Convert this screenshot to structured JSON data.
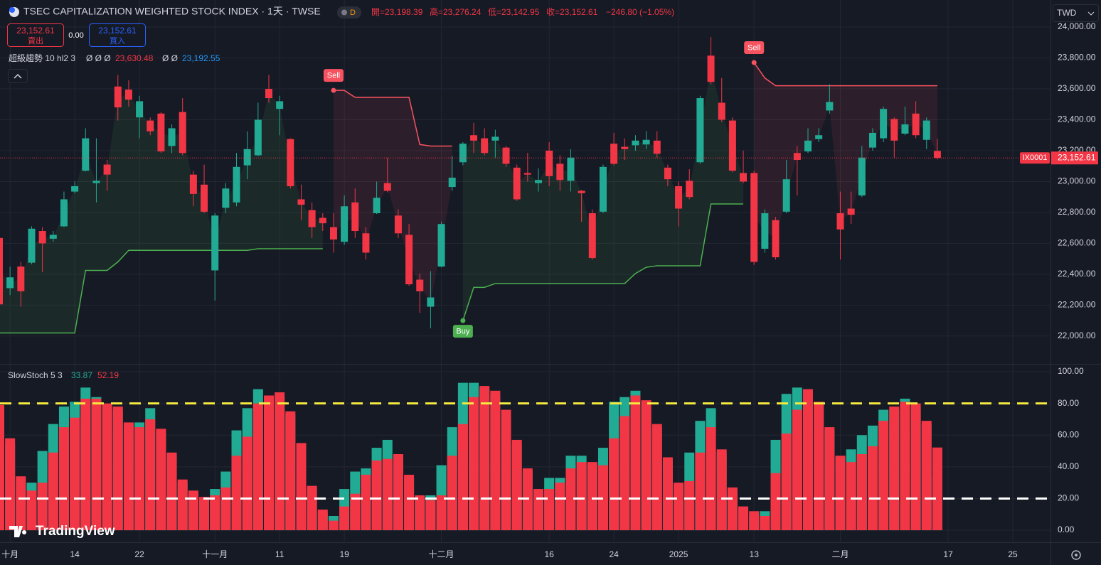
{
  "header": {
    "title": "TSEC CAPITALIZATION WEIGHTED STOCK INDEX · 1天 · TWSE",
    "interval_badge": "D",
    "ohlc": [
      "開=23,198.39",
      "高=23,276.24",
      "低=23,142.95",
      "收=23,152.61"
    ],
    "change": "−246.80 (−1.05%)",
    "currency": "TWD"
  },
  "trade": {
    "sell_price": "23,152.61",
    "sell_label": "賣出",
    "spread": "0.00",
    "buy_price": "23,152.61",
    "buy_label": "買入"
  },
  "indicator": {
    "name": "超級趨勢 10 hl2 3",
    "values": [
      "Ø Ø Ø",
      "23,630.48",
      "Ø Ø",
      "23,192.55"
    ]
  },
  "price_tag": {
    "symbol": "IX0001",
    "price": "23,152.61"
  },
  "logo": "TradingView",
  "chart_data": [
    {
      "type": "candlestick",
      "up_color": "#22ab94",
      "down_color": "#f23645",
      "grid": true,
      "open": [
        22635,
        22310,
        22450,
        22475,
        22680,
        22630,
        22710,
        22935,
        23070,
        22990,
        23110,
        23615,
        23595,
        23415,
        23395,
        23440,
        23230,
        23450,
        23045,
        22980,
        22425,
        22830,
        22865,
        23105,
        23170,
        23600,
        23470,
        23275,
        22885,
        22815,
        22765,
        22705,
        22610,
        22865,
        22665,
        22795,
        22990,
        22780,
        22655,
        22365,
        22190,
        22450,
        22965,
        23125,
        23300,
        23280,
        23265,
        23220,
        23090,
        23055,
        22990,
        23200,
        23115,
        23005,
        22940,
        22795,
        22805,
        23245,
        23225,
        23235,
        23240,
        23265,
        23090,
        22970,
        23005,
        23125,
        23815,
        23510,
        23395,
        23055,
        23055,
        22565,
        22750,
        22805,
        23185,
        23195,
        23275,
        23460,
        22795,
        22825,
        22910,
        23220,
        23280,
        23405,
        23310,
        23440,
        23270,
        23198.39
      ],
      "high": [
        22660,
        22450,
        22480,
        22710,
        22705,
        22680,
        22935,
        23000,
        23345,
        23280,
        23140,
        23690,
        23655,
        23555,
        23415,
        23450,
        23370,
        23540,
        23070,
        23110,
        22795,
        22990,
        23185,
        23325,
        23510,
        23690,
        23555,
        23280,
        22980,
        22865,
        22795,
        22795,
        22910,
        22955,
        22705,
        23000,
        23155,
        22820,
        22725,
        22405,
        22420,
        22740,
        23165,
        23255,
        23380,
        23345,
        23335,
        23230,
        23110,
        23185,
        23085,
        23255,
        23170,
        23210,
        22945,
        22820,
        23110,
        23315,
        23280,
        23300,
        23325,
        23325,
        23110,
        23000,
        23080,
        23555,
        23935,
        23670,
        23415,
        23200,
        23070,
        22820,
        22770,
        23140,
        23230,
        23345,
        23345,
        23630,
        22935,
        22935,
        23230,
        23345,
        23485,
        23415,
        23485,
        23520,
        23415,
        23276.24
      ],
      "low": [
        22150,
        22265,
        22190,
        22465,
        22415,
        22610,
        22705,
        22925,
        23065,
        22865,
        22940,
        23395,
        23485,
        23280,
        23300,
        23185,
        23185,
        23170,
        22840,
        22795,
        22230,
        22795,
        22840,
        23015,
        23165,
        23510,
        23300,
        22955,
        22750,
        22635,
        22680,
        22540,
        22590,
        22635,
        22495,
        22790,
        22930,
        22635,
        22325,
        22150,
        22050,
        22445,
        22940,
        23105,
        23185,
        23170,
        23155,
        23095,
        22875,
        23000,
        22935,
        22970,
        22940,
        22935,
        22740,
        22495,
        22795,
        23105,
        23140,
        23200,
        23210,
        23155,
        22970,
        22710,
        22885,
        23115,
        23630,
        23385,
        23060,
        22990,
        22460,
        22540,
        22495,
        22795,
        22910,
        23185,
        23255,
        23440,
        22495,
        22725,
        22900,
        23200,
        23255,
        23155,
        23300,
        23280,
        23210,
        23142.95
      ],
      "close": [
        22205,
        22380,
        22290,
        22695,
        22600,
        22655,
        22885,
        22970,
        23280,
        23005,
        23045,
        23480,
        23530,
        23520,
        23325,
        23195,
        23345,
        23185,
        22920,
        22805,
        22780,
        22955,
        23095,
        23210,
        23400,
        23540,
        23520,
        22970,
        22850,
        22705,
        22730,
        22625,
        22840,
        22680,
        22540,
        22895,
        22940,
        22665,
        22335,
        22290,
        22250,
        22725,
        23025,
        23245,
        23265,
        23185,
        23290,
        23115,
        22885,
        23045,
        23010,
        23035,
        23010,
        23155,
        22925,
        22505,
        23095,
        23115,
        23210,
        23265,
        23270,
        23180,
        23015,
        22825,
        22900,
        23540,
        23645,
        23400,
        23070,
        23000,
        22480,
        22795,
        22510,
        23015,
        23140,
        23265,
        23300,
        23515,
        22690,
        22785,
        23155,
        23315,
        23470,
        23265,
        23370,
        23300,
        23395,
        23152.61
      ],
      "series": [
        {
          "color": "#4caf50",
          "signal": "Buy",
          "values": [
            22020,
            22020,
            22020,
            22020,
            22020,
            22020,
            22020,
            22020,
            22425,
            22425,
            22425,
            22480,
            22555,
            22555,
            22555,
            22555,
            22555,
            22555,
            22555,
            22555,
            22555,
            22555,
            22555,
            22555,
            22565,
            22565,
            22565,
            22565,
            22565,
            22565,
            22565,
            null,
            null,
            null,
            null,
            null,
            null,
            null,
            null,
            null,
            null,
            null,
            null,
            22100,
            22315,
            22315,
            22340,
            22340,
            22340,
            22340,
            22340,
            22340,
            22340,
            22340,
            22340,
            22340,
            22340,
            22340,
            22340,
            22405,
            22445,
            22455,
            22455,
            22455,
            22455,
            22455,
            22855,
            22855,
            22855,
            22855,
            null,
            null,
            null,
            null,
            null,
            null,
            null,
            null,
            null,
            null,
            null,
            null,
            null,
            null,
            null,
            null,
            null,
            null
          ]
        },
        {
          "color": "#f7525f",
          "signal": "Sell",
          "values": [
            null,
            null,
            null,
            null,
            null,
            null,
            null,
            null,
            null,
            null,
            null,
            null,
            null,
            null,
            null,
            null,
            null,
            null,
            null,
            null,
            null,
            null,
            null,
            null,
            null,
            null,
            null,
            null,
            null,
            null,
            null,
            23590,
            23590,
            23545,
            23545,
            23545,
            23545,
            23545,
            23545,
            23240,
            23230,
            23230,
            23230,
            null,
            null,
            null,
            null,
            null,
            null,
            null,
            null,
            null,
            null,
            null,
            null,
            null,
            null,
            null,
            null,
            null,
            null,
            null,
            null,
            null,
            null,
            null,
            null,
            null,
            null,
            null,
            23770,
            23670,
            23620,
            23620,
            23620,
            23620,
            23620,
            23620,
            23620,
            23620,
            23620,
            23620,
            23620,
            23620,
            23620,
            23620,
            23620,
            23620
          ]
        }
      ],
      "ylim": [
        21820,
        24175
      ],
      "yticks": [
        {
          "value": 22000,
          "label": "22,000.00"
        },
        {
          "value": 22200,
          "label": "22,200.00"
        },
        {
          "value": 22400,
          "label": "22,400.00"
        },
        {
          "value": 22600,
          "label": "22,600.00"
        },
        {
          "value": 22800,
          "label": "22,800.00"
        },
        {
          "value": 23000,
          "label": "23,000.00"
        },
        {
          "value": 23200,
          "label": "23,200.00"
        },
        {
          "value": 23400,
          "label": "23,400.00"
        },
        {
          "value": 23600,
          "label": "23,600.00"
        },
        {
          "value": 23800,
          "label": "23,800.00"
        },
        {
          "value": 24000,
          "label": "24,000.00"
        }
      ]
    },
    {
      "type": "bar",
      "title": "SlowStoch 5 3",
      "grid": true,
      "series": [
        {
          "color": "#22ab94",
          "values": [
            75,
            55,
            30,
            30,
            50,
            67,
            78,
            81,
            90,
            84,
            79,
            76,
            66,
            68,
            77,
            62,
            47,
            30,
            23,
            19,
            26,
            37,
            63,
            77,
            89,
            83,
            84,
            73,
            53,
            26,
            11,
            9,
            26,
            37,
            39,
            52,
            57,
            46,
            33,
            20,
            22,
            41,
            65,
            93,
            93,
            89,
            86,
            74,
            55,
            37,
            24,
            33,
            33,
            47,
            47,
            41,
            52,
            81,
            84,
            88,
            80,
            65,
            44,
            28,
            49,
            69,
            77,
            49,
            25,
            13,
            10,
            12,
            57,
            86,
            90,
            87,
            79,
            63,
            45,
            51,
            60,
            66,
            76,
            76,
            83,
            78,
            67,
            33.87
          ]
        },
        {
          "color": "#f23645",
          "values": [
            79,
            58,
            34,
            25,
            30,
            49,
            65,
            71,
            83,
            83,
            80,
            78,
            68,
            65,
            70,
            64,
            49,
            32,
            25,
            21,
            22,
            27,
            47,
            59,
            80,
            85,
            87,
            75,
            55,
            28,
            13,
            6,
            15,
            23,
            35,
            44,
            45,
            48,
            35,
            22,
            19,
            22,
            47,
            67,
            84,
            91,
            88,
            76,
            57,
            39,
            26,
            26,
            30,
            39,
            43,
            43,
            41,
            58,
            72,
            85,
            82,
            67,
            46,
            30,
            31,
            49,
            65,
            51,
            27,
            15,
            12,
            9,
            36,
            61,
            76,
            89,
            81,
            65,
            47,
            43,
            48,
            53,
            69,
            78,
            81,
            80,
            69,
            52.19
          ]
        }
      ],
      "ylim": [
        -7.6,
        104.5
      ],
      "yticks": [
        {
          "value": 0,
          "label": "0.00"
        },
        {
          "value": 20,
          "label": "20.00"
        },
        {
          "value": 40,
          "label": "40.00"
        },
        {
          "value": 60,
          "label": "60.00"
        },
        {
          "value": 80,
          "label": "80.00"
        },
        {
          "value": 100,
          "label": "100.00"
        }
      ],
      "hlines": [
        {
          "value": 80,
          "color": "#f5e93f"
        },
        {
          "value": 20,
          "color": "#ffffff"
        }
      ],
      "xticks": [
        {
          "value": 1,
          "label": "十月"
        },
        {
          "value": 7,
          "label": "14"
        },
        {
          "value": 13,
          "label": "22"
        },
        {
          "value": 20,
          "label": "十一月"
        },
        {
          "value": 26,
          "label": "11"
        },
        {
          "value": 32,
          "label": "19"
        },
        {
          "value": 41,
          "label": "十二月"
        },
        {
          "value": 51,
          "label": "16"
        },
        {
          "value": 57,
          "label": "24"
        },
        {
          "value": 63,
          "label": "2025"
        },
        {
          "value": 70,
          "label": "13"
        },
        {
          "value": 78,
          "label": "二月"
        },
        {
          "value": 88,
          "label": "17"
        },
        {
          "value": 94,
          "label": "25"
        }
      ]
    }
  ]
}
